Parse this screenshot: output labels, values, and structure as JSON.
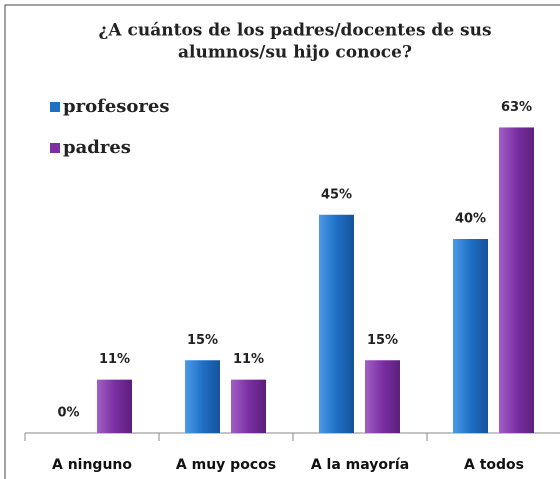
{
  "chart_data": {
    "type": "bar",
    "title": [
      "¿A cuántos de los padres/docentes de sus",
      "alumnos/su hijo conoce?"
    ],
    "categories": [
      "A ninguno",
      "A muy pocos",
      "A la mayoría",
      "A todos"
    ],
    "series": [
      {
        "name": "profesores",
        "color": "#1f6fc6",
        "values": [
          0,
          15,
          45,
          40
        ],
        "value_labels": [
          "0%",
          "15%",
          "45%",
          "40%"
        ]
      },
      {
        "name": "padres",
        "color": "#7b2fa3",
        "values": [
          11,
          11,
          15,
          63
        ],
        "value_labels": [
          "11%",
          "11%",
          "15%",
          "63%"
        ]
      }
    ],
    "legend": "upper left"
  }
}
